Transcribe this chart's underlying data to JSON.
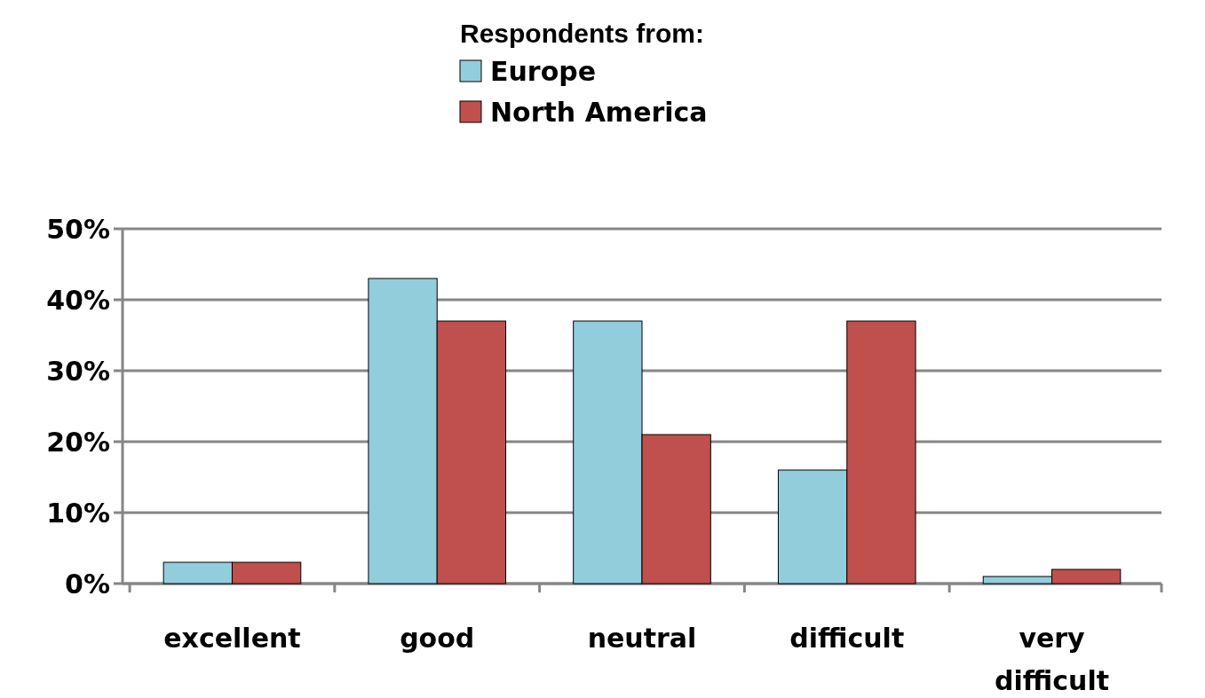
{
  "chart_data": {
    "type": "bar",
    "legend_title": "Respondents from:",
    "categories": [
      "excellent",
      "good",
      "neutral",
      "difficult",
      "very difficult"
    ],
    "series": [
      {
        "name": "Europe",
        "color": "#92cddc",
        "values": [
          3,
          43,
          37,
          16,
          1
        ]
      },
      {
        "name": "North America",
        "color": "#c0504d",
        "values": [
          3,
          37,
          21,
          37,
          2
        ]
      }
    ],
    "ylim": [
      0,
      50
    ],
    "yticks": [
      {
        "value": 0,
        "label": "0%"
      },
      {
        "value": 10,
        "label": "10%"
      },
      {
        "value": 20,
        "label": "20%"
      },
      {
        "value": 30,
        "label": "30%"
      },
      {
        "value": 40,
        "label": "40%"
      },
      {
        "value": 50,
        "label": "50%"
      }
    ],
    "grid": "y",
    "legend": "top"
  }
}
